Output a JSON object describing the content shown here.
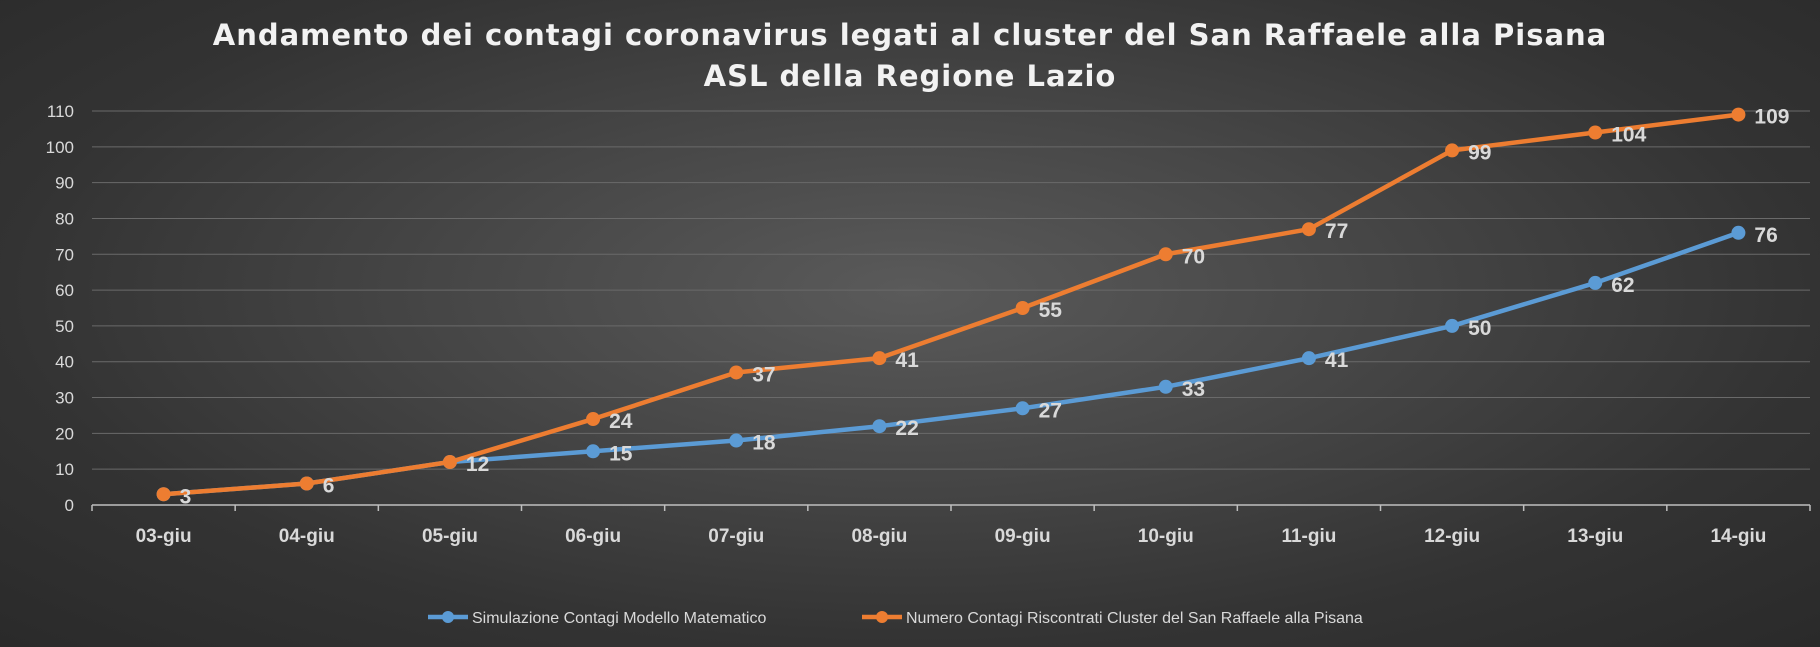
{
  "title_line1": "Andamento dei contagi coronavirus legati al cluster del San Raffaele alla Pisana",
  "title_line2": "ASL della Regione Lazio",
  "chart_data": {
    "type": "line",
    "title": "Andamento dei contagi coronavirus legati al cluster del San Raffaele alla Pisana ASL della Regione Lazio",
    "categories": [
      "03-giu",
      "04-giu",
      "05-giu",
      "06-giu",
      "07-giu",
      "08-giu",
      "09-giu",
      "10-giu",
      "11-giu",
      "12-giu",
      "13-giu",
      "14-giu"
    ],
    "series": [
      {
        "name": "Simulazione Contagi Modello Matematico",
        "color": "#5b9bd5",
        "values": [
          3,
          6,
          12,
          15,
          18,
          22,
          27,
          33,
          41,
          50,
          62,
          76
        ]
      },
      {
        "name": "Numero Contagi Riscontrati Cluster del San Raffaele alla Pisana",
        "color": "#ed7d31",
        "values": [
          3,
          6,
          12,
          24,
          37,
          41,
          55,
          70,
          77,
          99,
          104,
          109
        ]
      }
    ],
    "data_labels": {
      "simulazione": [
        null,
        null,
        12,
        15,
        18,
        22,
        27,
        33,
        41,
        50,
        62,
        76
      ],
      "riscontrati": [
        3,
        6,
        null,
        24,
        37,
        41,
        55,
        70,
        77,
        99,
        104,
        109
      ]
    },
    "ylim": [
      0,
      110
    ],
    "yticks": [
      0,
      10,
      20,
      30,
      40,
      50,
      60,
      70,
      80,
      90,
      100,
      110
    ],
    "grid": true,
    "legend_position": "bottom"
  }
}
